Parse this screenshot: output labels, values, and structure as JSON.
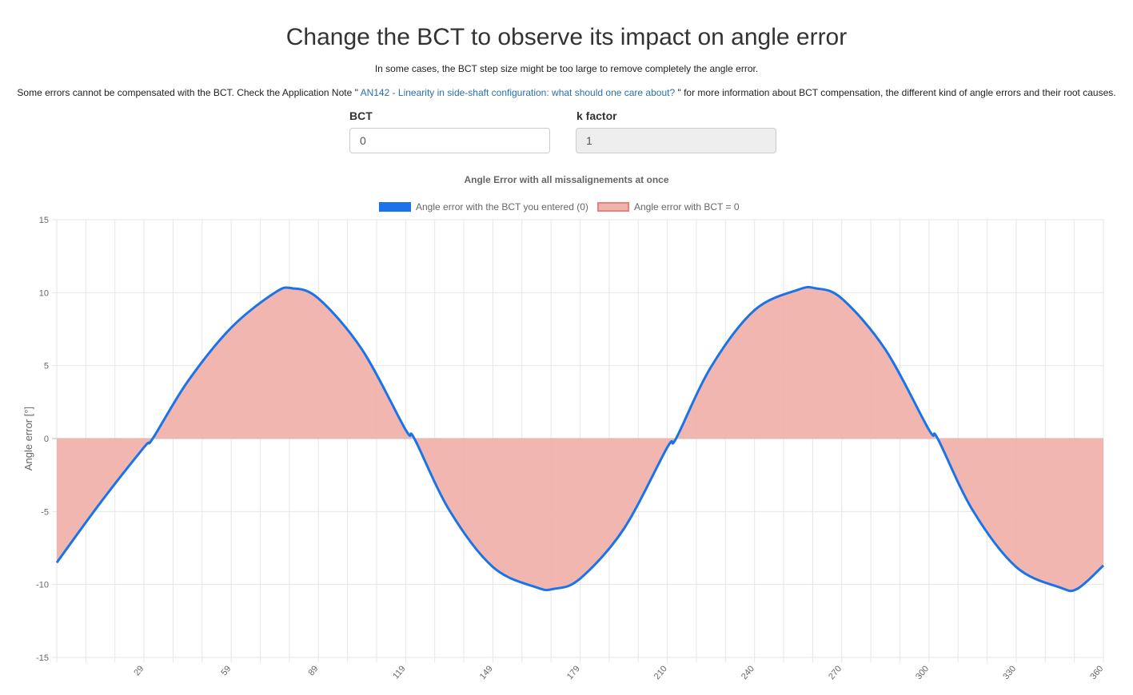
{
  "header": {
    "title": "Change the BCT to observe its impact on angle error",
    "subtitle": "In some cases, the BCT step size might be too large to remove completely the angle error.",
    "note_before": "Some errors cannot be compensated with the BCT. Check the Application Note \" ",
    "note_link": "AN142 - Linearity in side-shaft configuration: what should one care about?",
    "note_after": " \" for more information about BCT compensation, the different kind of angle errors and their root causes."
  },
  "form": {
    "bct_label": "BCT",
    "bct_value": "0",
    "k_label": "k factor",
    "k_value": "1"
  },
  "colors": {
    "line": "#1a73e8",
    "fill": "#f0b2ab",
    "fill_border": "#e8837a",
    "grid": "#e6e6e6"
  },
  "chart_data": {
    "type": "line",
    "title": "Angle Error with all missalignements at once",
    "ylabel": "Angle error [°]",
    "xlabel": "",
    "xlim": [
      0,
      360
    ],
    "ylim": [
      -15,
      15
    ],
    "y_ticks": [
      15,
      10,
      5,
      0,
      -5,
      -10,
      -15
    ],
    "x_tick_labels": [
      "29",
      "59",
      "89",
      "119",
      "149",
      "179",
      "210",
      "240",
      "270",
      "300",
      "330",
      "360"
    ],
    "legend_position": "top-center",
    "grid": true,
    "series": [
      {
        "name": "Angle error with the BCT you entered (0)",
        "style": "line",
        "x": [
          0,
          15,
          30,
          33,
          45,
          60,
          75,
          81,
          90,
          105,
          120,
          123,
          135,
          150,
          165,
          171,
          180,
          195,
          210,
          213,
          225,
          240,
          255,
          261,
          270,
          285,
          300,
          303,
          315,
          330,
          345,
          351,
          360
        ],
        "y": [
          -8.5,
          -4.4,
          -0.6,
          0,
          3.9,
          7.6,
          10.0,
          10.3,
          9.6,
          6.1,
          0.6,
          0,
          -4.9,
          -8.8,
          -10.2,
          -10.3,
          -9.6,
          -6.2,
          -0.6,
          0,
          4.9,
          8.8,
          10.2,
          10.3,
          9.6,
          6.1,
          0.6,
          0,
          -4.9,
          -8.8,
          -10.2,
          -10.3,
          -8.7
        ]
      },
      {
        "name": "Angle error with BCT = 0",
        "style": "area",
        "x": [
          0,
          15,
          30,
          33,
          45,
          60,
          75,
          81,
          90,
          105,
          120,
          123,
          135,
          150,
          165,
          171,
          180,
          195,
          210,
          213,
          225,
          240,
          255,
          261,
          270,
          285,
          300,
          303,
          315,
          330,
          345,
          351,
          360
        ],
        "y": [
          -8.5,
          -4.4,
          -0.6,
          0,
          3.9,
          7.6,
          10.0,
          10.3,
          9.6,
          6.1,
          0.6,
          0,
          -4.9,
          -8.8,
          -10.2,
          -10.3,
          -9.6,
          -6.2,
          -0.6,
          0,
          4.9,
          8.8,
          10.2,
          10.3,
          9.6,
          6.1,
          0.6,
          0,
          -4.9,
          -8.8,
          -10.2,
          -10.3,
          -8.7
        ]
      }
    ]
  }
}
